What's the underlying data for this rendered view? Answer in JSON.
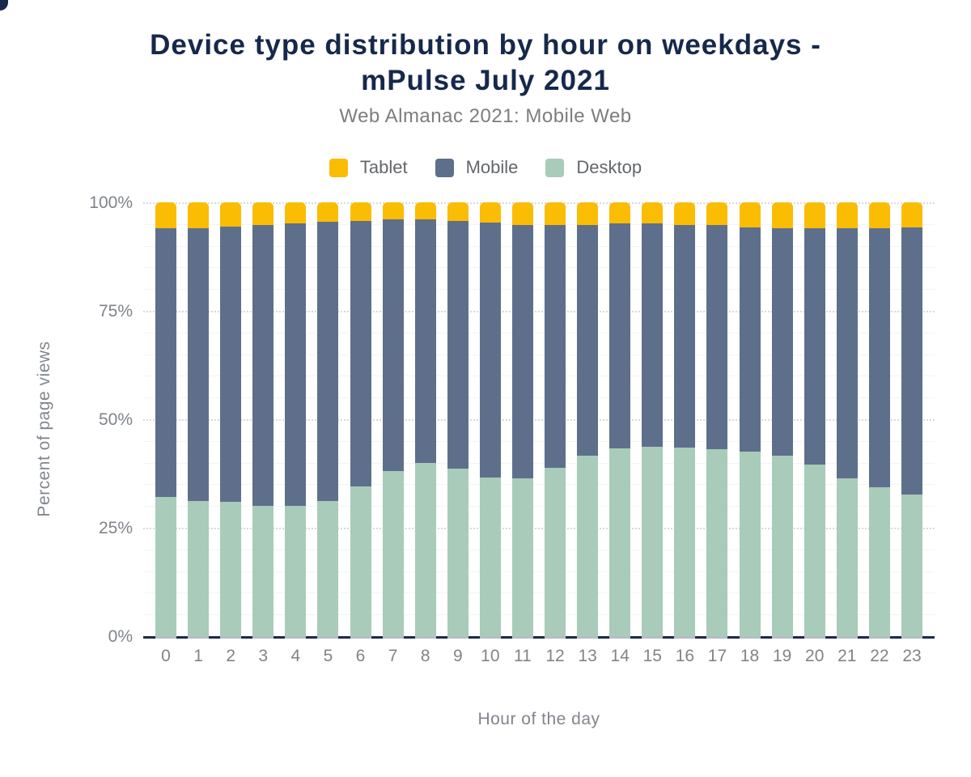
{
  "page": {
    "background": "#ffffff"
  },
  "title": {
    "line1": "Device type distribution by hour on weekdays -",
    "line2": "mPulse July 2021"
  },
  "subtitle": "Web Almanac 2021: Mobile Web",
  "legend": {
    "position": "top",
    "items": [
      {
        "label": "Tablet",
        "color_key": "tablet"
      },
      {
        "label": "Mobile",
        "color_key": "mobile"
      },
      {
        "label": "Desktop",
        "color_key": "desktop"
      }
    ]
  },
  "colors": {
    "tablet": "#FBBC04",
    "mobile": "#5E6F8C",
    "desktop": "#A9CBB9",
    "title_text": "#16294B",
    "subtitle_text": "#7D7D7D",
    "legend_text": "#63666A",
    "tick_text": "#7F848A",
    "axis_title_text": "#81868C",
    "axis_line": "#1B2A4A",
    "grid_major": "#D7D9DC",
    "grid_minor": "#F3F4F6",
    "background": "#FFFFFF"
  },
  "axes": {
    "y_title": "Percent of page views",
    "x_title": "Hour of the day",
    "y_ticks": [
      {
        "label": "0%",
        "value": 0
      },
      {
        "label": "25%",
        "value": 25
      },
      {
        "label": "50%",
        "value": 50
      },
      {
        "label": "75%",
        "value": 75
      },
      {
        "label": "100%",
        "value": 100
      }
    ]
  },
  "chart_data": {
    "type": "bar",
    "stacked": true,
    "percent_stacked": true,
    "title": "Device type distribution by hour on weekdays - mPulse July 2021",
    "subtitle": "Web Almanac 2021: Mobile Web",
    "xlabel": "Hour of the day",
    "ylabel": "Percent of page views",
    "ylim": [
      0,
      100
    ],
    "y_major_interval": 25,
    "y_minor_interval": 5,
    "grid": true,
    "legend_position": "top",
    "legend_order": [
      "Tablet",
      "Mobile",
      "Desktop"
    ],
    "stack_order_bottom_to_top": [
      "Desktop",
      "Mobile",
      "Tablet"
    ],
    "categories": [
      "0",
      "1",
      "2",
      "3",
      "4",
      "5",
      "6",
      "7",
      "8",
      "9",
      "10",
      "11",
      "12",
      "13",
      "14",
      "15",
      "16",
      "17",
      "18",
      "19",
      "20",
      "21",
      "22",
      "23"
    ],
    "series": [
      {
        "name": "Desktop",
        "color_key": "desktop",
        "values": [
          32.0,
          31.2,
          30.9,
          30.1,
          30.0,
          31.2,
          34.6,
          38.0,
          39.9,
          38.7,
          36.5,
          36.4,
          38.8,
          41.6,
          43.3,
          43.6,
          43.5,
          43.1,
          42.6,
          41.6,
          39.6,
          36.4,
          34.3,
          32.6
        ]
      },
      {
        "name": "Mobile",
        "color_key": "mobile",
        "values": [
          62.0,
          62.9,
          63.5,
          64.7,
          65.2,
          64.3,
          61.1,
          58.0,
          56.1,
          57.0,
          58.9,
          58.4,
          55.9,
          53.1,
          51.9,
          51.6,
          51.3,
          51.6,
          51.7,
          52.4,
          54.4,
          57.6,
          59.7,
          61.7
        ]
      },
      {
        "name": "Tablet",
        "color_key": "tablet",
        "values": [
          6.0,
          5.9,
          5.6,
          5.2,
          4.8,
          4.5,
          4.3,
          4.0,
          4.0,
          4.3,
          4.6,
          5.2,
          5.3,
          5.3,
          4.8,
          4.8,
          5.2,
          5.3,
          5.7,
          6.0,
          6.0,
          6.0,
          6.0,
          5.7
        ]
      }
    ]
  },
  "layout_note_values_visible_only": true
}
